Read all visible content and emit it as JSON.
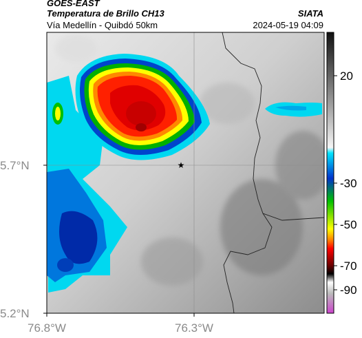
{
  "header": {
    "satellite": "GOES-EAST",
    "product": "Temperatura de Brillo CH13",
    "location": "Vía Medellín - Quibdó 50km",
    "organization": "SIATA",
    "timestamp": "2024-05-19 04:09"
  },
  "map": {
    "lat_ticks": [
      "5.7°N",
      "5.2°N"
    ],
    "lon_ticks": [
      "76.8°W",
      "76.3°W"
    ],
    "marker_icon": "star-icon"
  },
  "colorbar": {
    "tick_labels": [
      "20",
      "-30",
      "-50",
      "-70",
      "-90"
    ],
    "colors": [
      "#000000",
      "#ffffff",
      "#00e5ff",
      "#0033cc",
      "#00c000",
      "#ffff00",
      "#ff7f00",
      "#ff0000",
      "#7a0000",
      "#cc55cc"
    ]
  }
}
